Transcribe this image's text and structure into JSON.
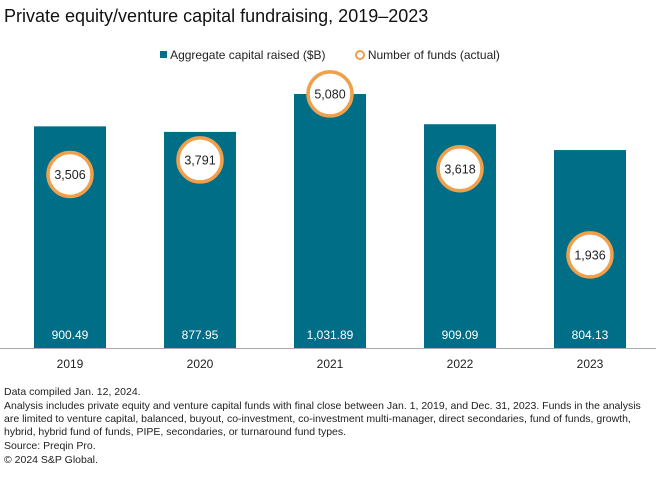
{
  "chart_data": {
    "type": "bar",
    "title": "Private equity/venture capital fundraising, 2019–2023",
    "categories": [
      "2019",
      "2020",
      "2021",
      "2022",
      "2023"
    ],
    "series": [
      {
        "name": "Aggregate capital raised ($B)",
        "type": "bar",
        "values": [
          900.49,
          877.95,
          1031.89,
          909.09,
          804.13
        ],
        "labels": [
          "900.49",
          "877.95",
          "1,031.89",
          "909.09",
          "804.13"
        ],
        "color": "#006e87"
      },
      {
        "name": "Number of funds (actual)",
        "type": "circle-marker",
        "axis": "secondary",
        "values": [
          3506,
          3791,
          5080,
          3618,
          1936
        ],
        "labels": [
          "3,506",
          "3,791",
          "5,080",
          "3,618",
          "1,936"
        ],
        "color": "#f0a04b"
      }
    ],
    "legend_position": "top-center",
    "grid": false
  },
  "notes": {
    "compiled": "Data compiled Jan. 12, 2024.",
    "analysis": "Analysis includes private equity and venture capital funds with final close between Jan. 1, 2019, and Dec. 31, 2023. Funds in the analysis are limited to venture capital, balanced, buyout, co-investment, co-investment multi-manager, direct secondaries, fund of funds, growth, hybrid, hybrid fund of funds, PIPE, secondaries, or turnaround fund types.",
    "source": "Source: Preqin Pro.",
    "copyright": "© 2024 S&P Global."
  }
}
